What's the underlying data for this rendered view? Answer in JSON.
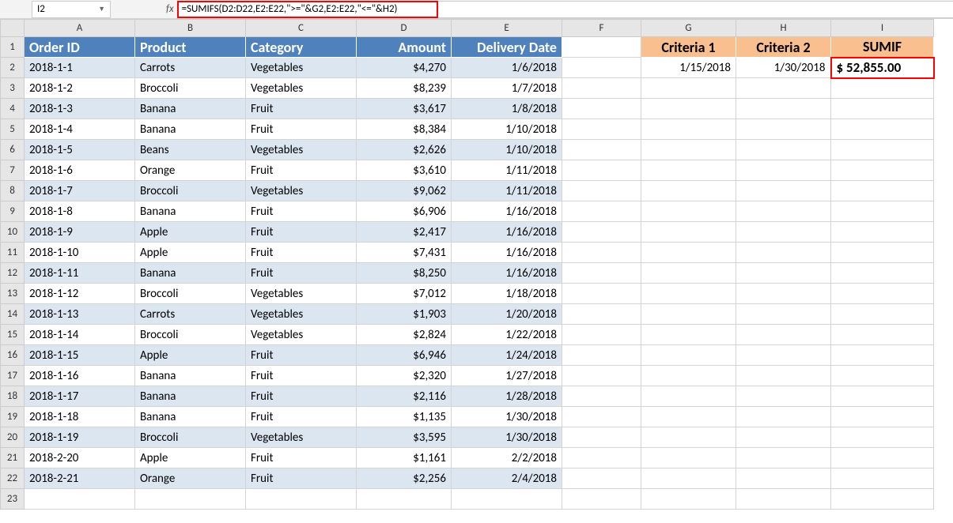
{
  "nameBox": "I2",
  "fxLabel": "fx",
  "formula": "=SUMIFS(D2:D22,E2:E22,\">=\"&G2,E2:E22,\"<=\"&H2)",
  "columns": [
    "A",
    "B",
    "C",
    "D",
    "E",
    "F",
    "G",
    "H",
    "I"
  ],
  "headers": {
    "A": "Order ID",
    "B": "Product",
    "C": "Category",
    "D": "Amount",
    "E": "Delivery Date",
    "G": "Criteria 1",
    "H": "Criteria 2",
    "I": "SUMIF"
  },
  "criteria": {
    "G": "1/15/2018",
    "H": "1/30/2018"
  },
  "result": "$  52,855.00",
  "rows": [
    {
      "id": "2018-1-1",
      "prod": "Carrots",
      "cat": "Vegetables",
      "amt": "$4,270",
      "date": "1/6/2018"
    },
    {
      "id": "2018-1-2",
      "prod": "Broccoli",
      "cat": "Vegetables",
      "amt": "$8,239",
      "date": "1/7/2018"
    },
    {
      "id": "2018-1-3",
      "prod": "Banana",
      "cat": "Fruit",
      "amt": "$3,617",
      "date": "1/8/2018"
    },
    {
      "id": "2018-1-4",
      "prod": "Banana",
      "cat": "Fruit",
      "amt": "$8,384",
      "date": "1/10/2018"
    },
    {
      "id": "2018-1-5",
      "prod": "Beans",
      "cat": "Vegetables",
      "amt": "$2,626",
      "date": "1/10/2018"
    },
    {
      "id": "2018-1-6",
      "prod": "Orange",
      "cat": "Fruit",
      "amt": "$3,610",
      "date": "1/11/2018"
    },
    {
      "id": "2018-1-7",
      "prod": "Broccoli",
      "cat": "Vegetables",
      "amt": "$9,062",
      "date": "1/11/2018"
    },
    {
      "id": "2018-1-8",
      "prod": "Banana",
      "cat": "Fruit",
      "amt": "$6,906",
      "date": "1/16/2018"
    },
    {
      "id": "2018-1-9",
      "prod": "Apple",
      "cat": "Fruit",
      "amt": "$2,417",
      "date": "1/16/2018"
    },
    {
      "id": "2018-1-10",
      "prod": "Apple",
      "cat": "Fruit",
      "amt": "$7,431",
      "date": "1/16/2018"
    },
    {
      "id": "2018-1-11",
      "prod": "Banana",
      "cat": "Fruit",
      "amt": "$8,250",
      "date": "1/16/2018"
    },
    {
      "id": "2018-1-12",
      "prod": "Broccoli",
      "cat": "Vegetables",
      "amt": "$7,012",
      "date": "1/18/2018"
    },
    {
      "id": "2018-1-13",
      "prod": "Carrots",
      "cat": "Vegetables",
      "amt": "$1,903",
      "date": "1/20/2018"
    },
    {
      "id": "2018-1-14",
      "prod": "Broccoli",
      "cat": "Vegetables",
      "amt": "$2,824",
      "date": "1/22/2018"
    },
    {
      "id": "2018-1-15",
      "prod": "Apple",
      "cat": "Fruit",
      "amt": "$6,946",
      "date": "1/24/2018"
    },
    {
      "id": "2018-1-16",
      "prod": "Banana",
      "cat": "Fruit",
      "amt": "$2,320",
      "date": "1/27/2018"
    },
    {
      "id": "2018-1-17",
      "prod": "Banana",
      "cat": "Fruit",
      "amt": "$2,116",
      "date": "1/28/2018"
    },
    {
      "id": "2018-1-18",
      "prod": "Banana",
      "cat": "Fruit",
      "amt": "$1,135",
      "date": "1/30/2018"
    },
    {
      "id": "2018-1-19",
      "prod": "Broccoli",
      "cat": "Vegetables",
      "amt": "$3,595",
      "date": "1/30/2018"
    },
    {
      "id": "2018-2-20",
      "prod": "Apple",
      "cat": "Fruit",
      "amt": "$1,161",
      "date": "2/2/2018"
    },
    {
      "id": "2018-2-21",
      "prod": "Orange",
      "cat": "Fruit",
      "amt": "$2,256",
      "date": "2/4/2018"
    }
  ],
  "colors": {
    "tableHeaderBg": "#4f81bd",
    "tableHeaderText": "#ffffff",
    "bandedBg": "#dce6f1",
    "criteriaHeaderBg": "#fabf8f",
    "highlightBorder": "#ff0000",
    "gridHeaderBg": "#e6e6e6"
  }
}
